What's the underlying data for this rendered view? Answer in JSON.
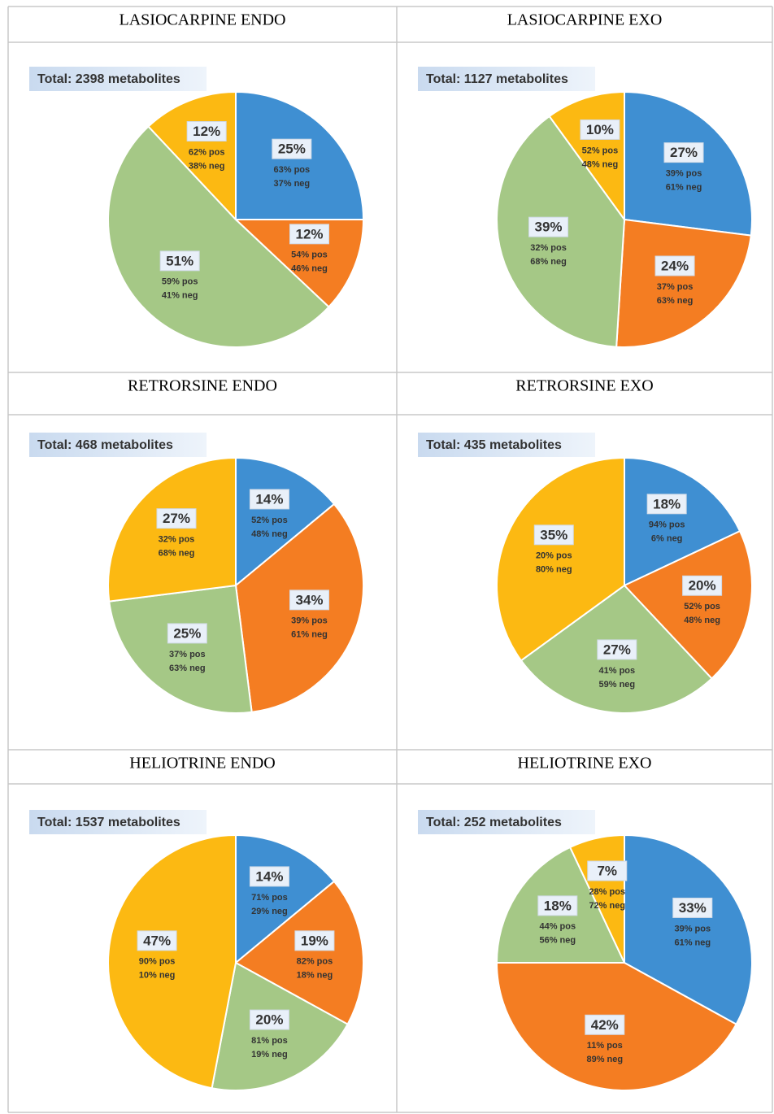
{
  "chart_data": [
    {
      "type": "pie",
      "title": "LASIOCARPINE ENDO",
      "note": "Total: 2398 metabolites",
      "values": [
        25,
        12,
        51,
        12
      ],
      "value_labels": [
        "25%",
        "12%",
        "51%",
        "12%"
      ],
      "pos_labels": [
        "63% pos",
        "54% pos",
        "59% pos",
        "62% pos"
      ],
      "neg_labels": [
        "37% neg",
        "46% neg",
        "41% neg",
        "38% neg"
      ],
      "colors": [
        "#3f8fd2",
        "#f47d22",
        "#a5c886",
        "#fcb912"
      ]
    },
    {
      "type": "pie",
      "title": "LASIOCARPINE EXO",
      "note": "Total: 1127 metabolites",
      "values": [
        27,
        24,
        39,
        10
      ],
      "value_labels": [
        "27%",
        "24%",
        "39%",
        "10%"
      ],
      "pos_labels": [
        "39% pos",
        "37% pos",
        "32% pos",
        "52% pos"
      ],
      "neg_labels": [
        "61% neg",
        "63% neg",
        "68% neg",
        "48% neg"
      ],
      "colors": [
        "#3f8fd2",
        "#f47d22",
        "#a5c886",
        "#fcb912"
      ]
    },
    {
      "type": "pie",
      "title": "RETRORSINE ENDO",
      "note": "Total: 468 metabolites",
      "values": [
        14,
        34,
        25,
        27
      ],
      "value_labels": [
        "14%",
        "34%",
        "25%",
        "27%"
      ],
      "pos_labels": [
        "52% pos",
        "39% pos",
        "37% pos",
        "32% pos"
      ],
      "neg_labels": [
        "48% neg",
        "61% neg",
        "63% neg",
        "68% neg"
      ],
      "colors": [
        "#3f8fd2",
        "#f47d22",
        "#a5c886",
        "#fcb912"
      ]
    },
    {
      "type": "pie",
      "title": "RETRORSINE EXO",
      "note": "Total: 435 metabolites",
      "values": [
        18,
        20,
        27,
        35
      ],
      "value_labels": [
        "18%",
        "20%",
        "27%",
        "35%"
      ],
      "pos_labels": [
        "94% pos",
        "52% pos",
        "41% pos",
        "20% pos"
      ],
      "neg_labels": [
        "6% neg",
        "48% neg",
        "59% neg",
        "80% neg"
      ],
      "colors": [
        "#3f8fd2",
        "#f47d22",
        "#a5c886",
        "#fcb912"
      ]
    },
    {
      "type": "pie",
      "title": "HELIOTRINE ENDO",
      "note": "Total: 1537 metabolites",
      "values": [
        14,
        19,
        20,
        47
      ],
      "value_labels": [
        "14%",
        "19%",
        "20%",
        "47%"
      ],
      "pos_labels": [
        "71% pos",
        "82% pos",
        "81% pos",
        "90% pos"
      ],
      "neg_labels": [
        "29% neg",
        "18% neg",
        "19% neg",
        "10% neg"
      ],
      "colors": [
        "#3f8fd2",
        "#f47d22",
        "#a5c886",
        "#fcb912"
      ]
    },
    {
      "type": "pie",
      "title": "HELIOTRINE EXO",
      "note": "Total: 252 metabolites",
      "values": [
        33,
        42,
        18,
        7
      ],
      "value_labels": [
        "33%",
        "42%",
        "18%",
        "7%"
      ],
      "pos_labels": [
        "39% pos",
        "11% pos",
        "44% pos",
        "28% pos"
      ],
      "neg_labels": [
        "61% neg",
        "89% neg",
        "56% neg",
        "72% neg"
      ],
      "colors": [
        "#3f8fd2",
        "#f47d22",
        "#a5c886",
        "#fcb912"
      ]
    }
  ]
}
